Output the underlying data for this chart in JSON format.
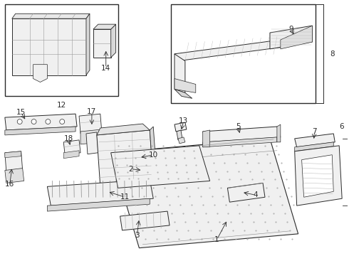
{
  "bg_color": "#ffffff",
  "line_color": "#2a2a2a",
  "fig_width": 4.9,
  "fig_height": 3.6,
  "dpi": 100,
  "lw_main": 0.8,
  "lw_detail": 0.4,
  "label_fs": 7.5,
  "fill_part": "#f0f0f0",
  "fill_white": "#ffffff",
  "fill_dark": "#d8d8d8"
}
